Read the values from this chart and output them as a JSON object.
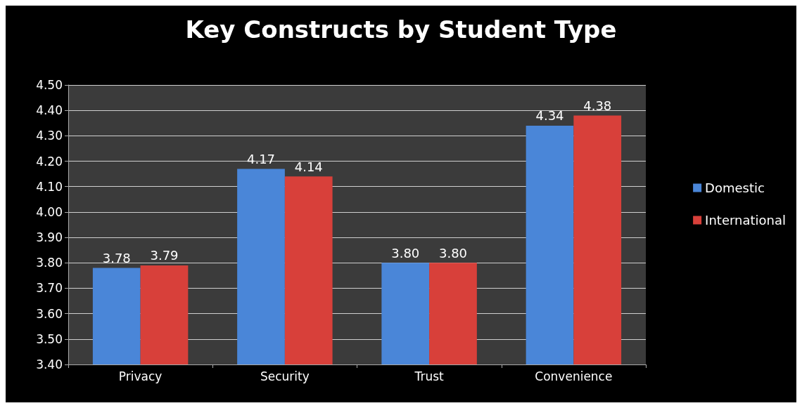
{
  "chart_data": {
    "type": "bar",
    "title": "Key Constructs by Student Type",
    "categories": [
      "Privacy",
      "Security",
      "Trust",
      "Convenience"
    ],
    "series": [
      {
        "name": "Domestic",
        "color": "#4a86d8",
        "values": [
          3.78,
          4.17,
          3.8,
          4.34
        ],
        "value_labels": [
          "3.78",
          "4.17",
          "3.80",
          "4.34"
        ]
      },
      {
        "name": "International",
        "color": "#d8403a",
        "values": [
          3.79,
          4.14,
          3.8,
          4.38
        ],
        "value_labels": [
          "3.79",
          "4.14",
          "3.80",
          "4.38"
        ]
      }
    ],
    "ylim": [
      3.4,
      4.5
    ],
    "yticks": [
      {
        "value": 3.4,
        "label": "3.40"
      },
      {
        "value": 3.5,
        "label": "3.50"
      },
      {
        "value": 3.6,
        "label": "3.60"
      },
      {
        "value": 3.7,
        "label": "3.70"
      },
      {
        "value": 3.8,
        "label": "3.80"
      },
      {
        "value": 3.9,
        "label": "3.90"
      },
      {
        "value": 4.0,
        "label": "4.00"
      },
      {
        "value": 4.1,
        "label": "4.10"
      },
      {
        "value": 4.2,
        "label": "4.20"
      },
      {
        "value": 4.3,
        "label": "4.30"
      },
      {
        "value": 4.4,
        "label": "4.40"
      },
      {
        "value": 4.5,
        "label": "4.50"
      }
    ],
    "grid": "y",
    "legend": "right"
  }
}
